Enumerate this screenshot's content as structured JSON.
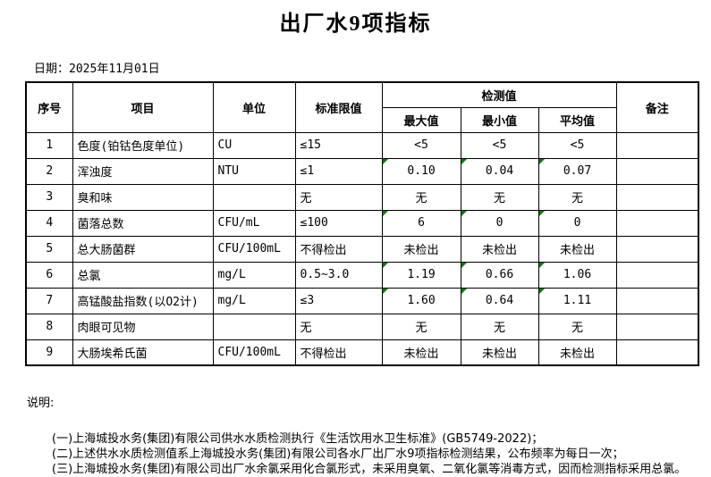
{
  "title": "出厂水9项指标",
  "date": {
    "label": "日期：",
    "value": "2025年11月01日"
  },
  "table": {
    "headers": {
      "no": "序号",
      "item": "项目",
      "unit": "单位",
      "limit": "标准限值",
      "detection": "检测值",
      "max": "最大值",
      "min": "最小值",
      "avg": "平均值",
      "remark": "备注"
    },
    "rows": [
      {
        "no": "1",
        "item": "色度(铂钴色度单位)",
        "unit": "CU",
        "limit": "≤15",
        "max": "<5",
        "min": "<5",
        "avg": "<5",
        "remark": "",
        "flagged": false
      },
      {
        "no": "2",
        "item": "浑浊度",
        "unit": "NTU",
        "limit": "≤1",
        "max": "0.10",
        "min": "0.04",
        "avg": "0.07",
        "remark": "",
        "flagged": true
      },
      {
        "no": "3",
        "item": "臭和味",
        "unit": "",
        "limit": "无",
        "max": "无",
        "min": "无",
        "avg": "无",
        "remark": "",
        "flagged": false
      },
      {
        "no": "4",
        "item": "菌落总数",
        "unit": "CFU/mL",
        "limit": "≤100",
        "max": "6",
        "min": "0",
        "avg": "0",
        "remark": "",
        "flagged": true
      },
      {
        "no": "5",
        "item": "总大肠菌群",
        "unit": "CFU/100mL",
        "limit": "不得检出",
        "max": "未检出",
        "min": "未检出",
        "avg": "未检出",
        "remark": "",
        "flagged": false
      },
      {
        "no": "6",
        "item": "总氯",
        "unit": "mg/L",
        "limit": "0.5~3.0",
        "max": "1.19",
        "min": "0.66",
        "avg": "1.06",
        "remark": "",
        "flagged": true
      },
      {
        "no": "7",
        "item": "高锰酸盐指数(以O2计)",
        "unit": "mg/L",
        "limit": "≤3",
        "max": "1.60",
        "min": "0.64",
        "avg": "1.11",
        "remark": "",
        "flagged": true
      },
      {
        "no": "8",
        "item": "肉眼可见物",
        "unit": "",
        "limit": "无",
        "max": "无",
        "min": "无",
        "avg": "无",
        "remark": "",
        "flagged": false
      },
      {
        "no": "9",
        "item": "大肠埃希氏菌",
        "unit": "CFU/100mL",
        "limit": "不得检出",
        "max": "未检出",
        "min": "未检出",
        "avg": "未检出",
        "remark": "",
        "flagged": false
      }
    ]
  },
  "notes": {
    "heading": "说明:",
    "lines": [
      "(一)上海城投水务(集团)有限公司供水水质检测执行《生活饮用水卫生标准》(GB5749-2022)；",
      "(二)上述供水水质检测值系上海城投水务(集团)有限公司各水厂出厂水9项指标检测结果，公布频率为每日一次；",
      "(三)上海城投水务(集团)有限公司出厂水余氯采用化合氯形式，未采用臭氧、二氧化氯等消毒方式，因而检测指标采用总氯。"
    ]
  },
  "colors": {
    "flag_marker": "#008000",
    "border": "#000000"
  }
}
